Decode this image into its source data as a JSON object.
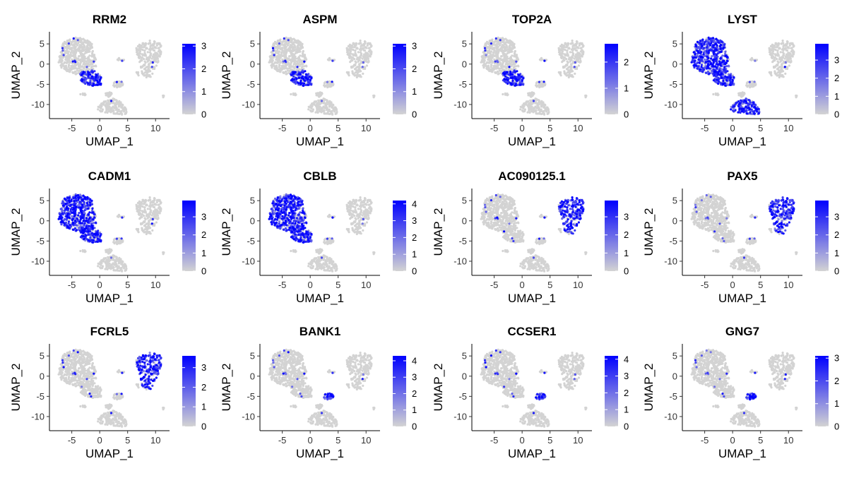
{
  "chart_data": [
    {
      "type": "scatter",
      "title": "RRM2",
      "xlabel": "UMAP_1",
      "ylabel": "UMAP_2",
      "x_ticks": [
        -5,
        0,
        5,
        10
      ],
      "y_ticks": [
        5,
        0,
        -5,
        -10
      ],
      "legend_ticks": [
        0,
        1,
        2,
        3
      ],
      "legend_max": 3.1,
      "color_low": "#d3d3d3",
      "color_high": "#0000ff",
      "hot_regions": [
        "B"
      ]
    },
    {
      "type": "scatter",
      "title": "ASPM",
      "xlabel": "UMAP_1",
      "ylabel": "UMAP_2",
      "x_ticks": [
        -5,
        0,
        5,
        10
      ],
      "y_ticks": [
        5,
        0,
        -5,
        -10
      ],
      "legend_ticks": [
        0,
        1,
        2,
        3
      ],
      "legend_max": 3.1,
      "color_low": "#d3d3d3",
      "color_high": "#0000ff",
      "hot_regions": [
        "B"
      ]
    },
    {
      "type": "scatter",
      "title": "TOP2A",
      "xlabel": "UMAP_1",
      "ylabel": "UMAP_2",
      "x_ticks": [
        -5,
        0,
        5,
        10
      ],
      "y_ticks": [
        5,
        0,
        -5,
        -10
      ],
      "legend_ticks": [
        0,
        1,
        2
      ],
      "legend_max": 2.7,
      "color_low": "#d3d3d3",
      "color_high": "#0000ff",
      "hot_regions": [
        "B"
      ]
    },
    {
      "type": "scatter",
      "title": "LYST",
      "xlabel": "UMAP_1",
      "ylabel": "UMAP_2",
      "x_ticks": [
        -5,
        0,
        5,
        10
      ],
      "y_ticks": [
        5,
        0,
        -5,
        -10
      ],
      "legend_ticks": [
        0,
        1,
        2,
        3
      ],
      "legend_max": 3.9,
      "color_low": "#d3d3d3",
      "color_high": "#0000ff",
      "hot_regions": [
        "A",
        "B",
        "E"
      ]
    },
    {
      "type": "scatter",
      "title": "CADM1",
      "xlabel": "UMAP_1",
      "ylabel": "UMAP_2",
      "x_ticks": [
        -5,
        0,
        5,
        10
      ],
      "y_ticks": [
        5,
        0,
        -5,
        -10
      ],
      "legend_ticks": [
        0,
        1,
        2,
        3
      ],
      "legend_max": 3.9,
      "color_low": "#d3d3d3",
      "color_high": "#0000ff",
      "hot_regions": [
        "A",
        "B"
      ]
    },
    {
      "type": "scatter",
      "title": "CBLB",
      "xlabel": "UMAP_1",
      "ylabel": "UMAP_2",
      "x_ticks": [
        -5,
        0,
        5,
        10
      ],
      "y_ticks": [
        5,
        0,
        -5,
        -10
      ],
      "legend_ticks": [
        0,
        1,
        2,
        3,
        4
      ],
      "legend_max": 4.2,
      "color_low": "#d3d3d3",
      "color_high": "#0000ff",
      "hot_regions": [
        "A",
        "B"
      ]
    },
    {
      "type": "scatter",
      "title": "AC090125.1",
      "xlabel": "UMAP_1",
      "ylabel": "UMAP_2",
      "x_ticks": [
        -5,
        0,
        5,
        10
      ],
      "y_ticks": [
        5,
        0,
        -5,
        -10
      ],
      "legend_ticks": [
        0,
        1,
        2,
        3
      ],
      "legend_max": 3.9,
      "color_low": "#d3d3d3",
      "color_high": "#0000ff",
      "hot_regions": [
        "C"
      ]
    },
    {
      "type": "scatter",
      "title": "PAX5",
      "xlabel": "UMAP_1",
      "ylabel": "UMAP_2",
      "x_ticks": [
        -5,
        0,
        5,
        10
      ],
      "y_ticks": [
        5,
        0,
        -5,
        -10
      ],
      "legend_ticks": [
        0,
        1,
        2,
        3
      ],
      "legend_max": 3.9,
      "color_low": "#d3d3d3",
      "color_high": "#0000ff",
      "hot_regions": [
        "C"
      ]
    },
    {
      "type": "scatter",
      "title": "FCRL5",
      "xlabel": "UMAP_1",
      "ylabel": "UMAP_2",
      "x_ticks": [
        -5,
        0,
        5,
        10
      ],
      "y_ticks": [
        5,
        0,
        -5,
        -10
      ],
      "legend_ticks": [
        0,
        1,
        2,
        3
      ],
      "legend_max": 3.6,
      "color_low": "#d3d3d3",
      "color_high": "#0000ff",
      "hot_regions": [
        "C"
      ]
    },
    {
      "type": "scatter",
      "title": "BANK1",
      "xlabel": "UMAP_1",
      "ylabel": "UMAP_2",
      "x_ticks": [
        -5,
        0,
        5,
        10
      ],
      "y_ticks": [
        5,
        0,
        -5,
        -10
      ],
      "legend_ticks": [
        0,
        1,
        2,
        3,
        4
      ],
      "legend_max": 4.3,
      "color_low": "#d3d3d3",
      "color_high": "#0000ff",
      "hot_regions": [
        "D"
      ]
    },
    {
      "type": "scatter",
      "title": "CCSER1",
      "xlabel": "UMAP_1",
      "ylabel": "UMAP_2",
      "x_ticks": [
        -5,
        0,
        5,
        10
      ],
      "y_ticks": [
        5,
        0,
        -5,
        -10
      ],
      "legend_ticks": [
        0,
        1,
        2,
        3,
        4
      ],
      "legend_max": 4.2,
      "color_low": "#d3d3d3",
      "color_high": "#0000ff",
      "hot_regions": [
        "D"
      ]
    },
    {
      "type": "scatter",
      "title": "GNG7",
      "xlabel": "UMAP_1",
      "ylabel": "UMAP_2",
      "x_ticks": [
        -5,
        0,
        5,
        10
      ],
      "y_ticks": [
        5,
        0,
        -5,
        -10
      ],
      "legend_ticks": [
        0,
        1,
        2,
        3
      ],
      "legend_max": 3.1,
      "color_low": "#d3d3d3",
      "color_high": "#0000ff",
      "hot_regions": [
        "D"
      ]
    }
  ]
}
